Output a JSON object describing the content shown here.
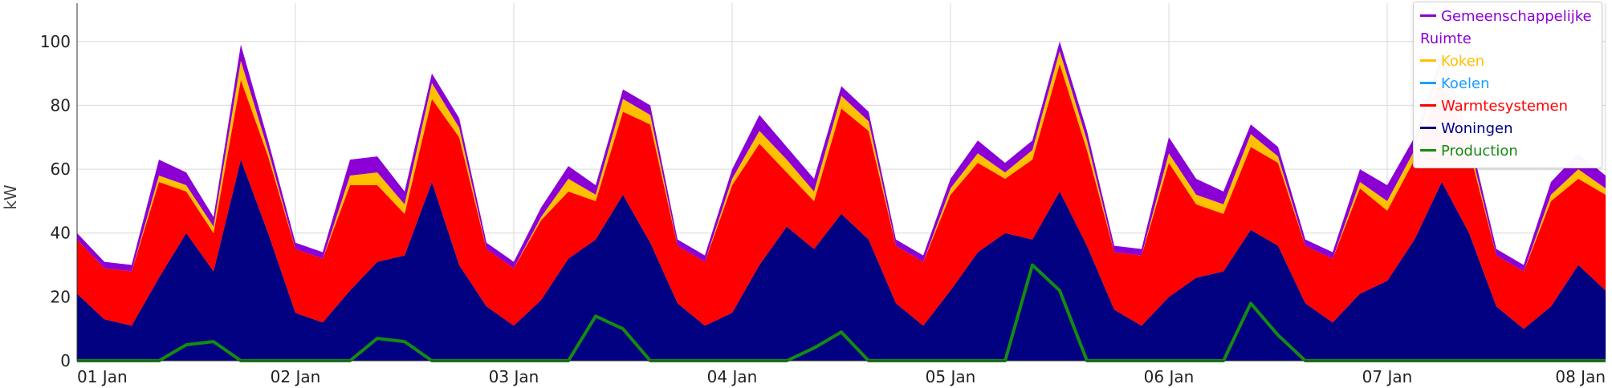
{
  "chart_data": {
    "type": "area",
    "stacked": true,
    "ylabel": "kW",
    "ylim": [
      0,
      112
    ],
    "yticks": [
      0,
      20,
      40,
      60,
      80,
      100
    ],
    "x_range": [
      "01 Jan",
      "08 Jan"
    ],
    "xticks": [
      "01 Jan",
      "02 Jan",
      "03 Jan",
      "04 Jan",
      "05 Jan",
      "06 Jan",
      "07 Jan",
      "08 Jan"
    ],
    "grid": true,
    "legend_position": "top-right",
    "hours": [
      0,
      3,
      6,
      9,
      12,
      15,
      18,
      21,
      24,
      27,
      30,
      33,
      36,
      39,
      42,
      45,
      48,
      51,
      54,
      57,
      60,
      63,
      66,
      69,
      72,
      75,
      78,
      81,
      84,
      87,
      90,
      93,
      96,
      99,
      102,
      105,
      108,
      111,
      114,
      117,
      120,
      123,
      126,
      129,
      132,
      135,
      138,
      141,
      144,
      147,
      150,
      153,
      156,
      159,
      162,
      165,
      168
    ],
    "series": [
      {
        "name": "Woningen",
        "color": "#000080",
        "values": [
          21,
          13,
          11,
          26,
          40,
          28,
          63,
          40,
          15,
          12,
          22,
          31,
          33,
          56,
          30,
          17,
          11,
          19,
          32,
          38,
          52,
          37,
          18,
          11,
          15,
          30,
          42,
          35,
          46,
          38,
          18,
          11,
          22,
          34,
          40,
          38,
          53,
          36,
          16,
          11,
          20,
          26,
          28,
          41,
          36,
          18,
          12,
          21,
          25,
          38,
          56,
          40,
          17,
          10,
          17,
          30,
          22
        ]
      },
      {
        "name": "Warmtesystemen",
        "color": "#ff0000",
        "values": [
          17,
          16,
          17,
          30,
          13,
          12,
          25,
          24,
          20,
          20,
          33,
          24,
          13,
          26,
          40,
          18,
          18,
          25,
          21,
          12,
          26,
          37,
          18,
          20,
          40,
          38,
          17,
          15,
          33,
          34,
          18,
          20,
          30,
          28,
          17,
          25,
          40,
          30,
          18,
          22,
          42,
          23,
          18,
          26,
          26,
          18,
          20,
          33,
          22,
          25,
          34,
          26,
          16,
          18,
          33,
          27,
          30
        ]
      },
      {
        "name": "Koelen",
        "color": "#1a9fff",
        "values": [
          0,
          0,
          0,
          0,
          0,
          0,
          0,
          0,
          0,
          0,
          0,
          0,
          0,
          0,
          0,
          0,
          0,
          0,
          0,
          0,
          0,
          0,
          0,
          0,
          0,
          0,
          0,
          0,
          0,
          0,
          0,
          0,
          0,
          0,
          0,
          0,
          0,
          0,
          0,
          0,
          0,
          0,
          0,
          0,
          0,
          0,
          0,
          0,
          0,
          0,
          0,
          0,
          0,
          0,
          0,
          0,
          0
        ]
      },
      {
        "name": "Koken",
        "color": "#ffc000",
        "values": [
          0,
          0,
          0,
          2,
          2,
          2,
          6,
          2,
          0,
          0,
          3,
          4,
          3,
          5,
          3,
          0,
          0,
          1,
          4,
          2,
          4,
          3,
          0,
          0,
          2,
          4,
          4,
          3,
          4,
          3,
          0,
          0,
          2,
          3,
          2,
          3,
          4,
          3,
          0,
          0,
          3,
          3,
          3,
          4,
          2,
          0,
          0,
          2,
          3,
          3,
          3,
          2,
          0,
          0,
          2,
          3,
          2
        ]
      },
      {
        "name": "Gemeenschappelijke Ruimte",
        "color": "#8b00d4",
        "values": [
          2,
          2,
          2,
          5,
          4,
          3,
          5,
          3,
          2,
          2,
          5,
          5,
          4,
          3,
          3,
          2,
          2,
          3,
          4,
          3,
          3,
          3,
          2,
          2,
          3,
          5,
          4,
          4,
          3,
          3,
          2,
          2,
          3,
          4,
          3,
          3,
          3,
          3,
          2,
          2,
          5,
          5,
          4,
          3,
          3,
          2,
          2,
          4,
          5,
          4,
          3,
          3,
          2,
          2,
          4,
          5,
          4
        ]
      },
      {
        "name": "Production",
        "color": "#138c0f",
        "line": true,
        "values": [
          0,
          0,
          0,
          0,
          5,
          6,
          0,
          0,
          0,
          0,
          0,
          7,
          6,
          0,
          0,
          0,
          0,
          0,
          0,
          14,
          10,
          0,
          0,
          0,
          0,
          0,
          0,
          4,
          9,
          0,
          0,
          0,
          0,
          0,
          0,
          30,
          22,
          0,
          0,
          0,
          0,
          0,
          0,
          18,
          8,
          0,
          0,
          0,
          0,
          0,
          0,
          0,
          0,
          0,
          0,
          0,
          0
        ]
      }
    ]
  }
}
